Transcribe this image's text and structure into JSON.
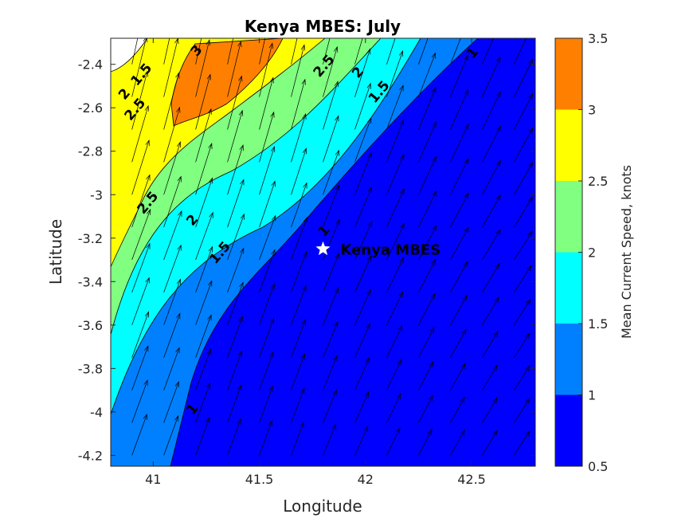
{
  "chart_data": {
    "type": "contour",
    "title": "Kenya MBES: July",
    "xlabel": "Longitude",
    "ylabel": "Latitude",
    "xlim": [
      40.8,
      42.8
    ],
    "ylim": [
      -4.25,
      -2.28
    ],
    "xticks": [
      41,
      41.5,
      42,
      42.5
    ],
    "xtick_labels": [
      "41",
      "41.5",
      "42",
      "42.5"
    ],
    "yticks": [
      -2.4,
      -2.6,
      -2.8,
      -3,
      -3.2,
      -3.4,
      -3.6,
      -3.8,
      -4,
      -4.2
    ],
    "ytick_labels": [
      "-2.4",
      "-2.6",
      "-2.8",
      "-3",
      "-3.2",
      "-3.4",
      "-3.6",
      "-3.8",
      "-4",
      "-4.2"
    ],
    "colorbar": {
      "label": "Mean Current Speed, knots",
      "levels": [
        0.5,
        1,
        1.5,
        2,
        2.5,
        3,
        3.5
      ],
      "tick_labels": [
        "0.5",
        "1",
        "1.5",
        "2",
        "2.5",
        "3",
        "3.5"
      ],
      "colors": [
        "#0000ff",
        "#0080ff",
        "#00ffff",
        "#80ff80",
        "#ffff00",
        "#ff8000"
      ]
    },
    "contour_labels": [
      {
        "text": "1",
        "lon": 42.52,
        "lat": -2.36
      },
      {
        "text": "1",
        "lon": 41.82,
        "lat": -3.18
      },
      {
        "text": "1",
        "lon": 41.2,
        "lat": -4.0
      },
      {
        "text": "1.5",
        "lon": 42.08,
        "lat": -2.54
      },
      {
        "text": "1.5",
        "lon": 41.33,
        "lat": -3.28
      },
      {
        "text": "1.5",
        "lon": 40.96,
        "lat": -2.46
      },
      {
        "text": "2",
        "lon": 41.98,
        "lat": -2.45
      },
      {
        "text": "2",
        "lon": 41.2,
        "lat": -3.13
      },
      {
        "text": "2",
        "lon": 40.88,
        "lat": -2.55
      },
      {
        "text": "2.5",
        "lon": 41.82,
        "lat": -2.42
      },
      {
        "text": "2.5",
        "lon": 40.99,
        "lat": -3.05
      },
      {
        "text": "2.5",
        "lon": 40.93,
        "lat": -2.62
      },
      {
        "text": "3",
        "lon": 41.22,
        "lat": -2.35
      }
    ],
    "marker": {
      "label": "Kenya MBES",
      "lon": 41.8,
      "lat": -3.25,
      "symbol": "star"
    },
    "vector_field": {
      "description": "current direction arrows",
      "lon_range": [
        40.9,
        42.7
      ],
      "lat_range": [
        -4.2,
        -2.4
      ],
      "grid": [
        13,
        13
      ]
    }
  }
}
